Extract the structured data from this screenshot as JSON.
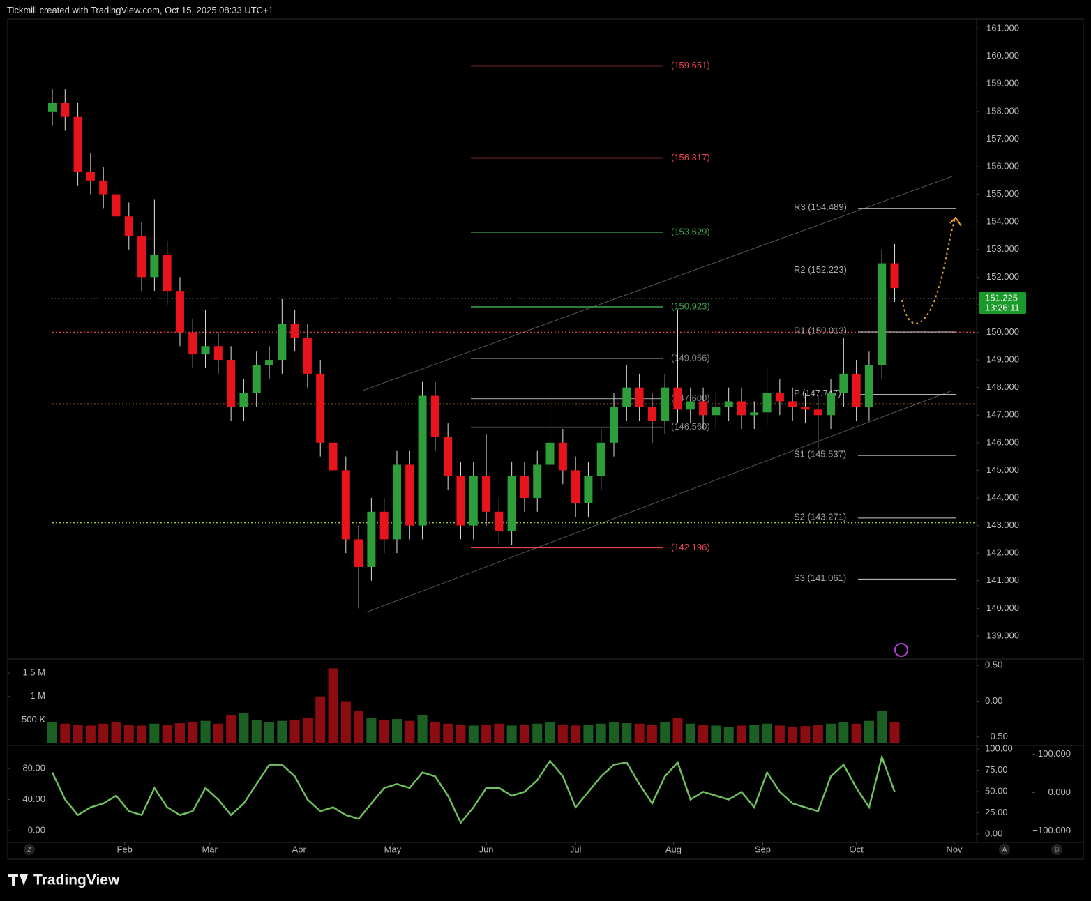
{
  "header": {
    "title": "Tickmill created with TradingView.com, Oct 15, 2025 08:33 UTC+1"
  },
  "footer": {
    "brand": "TradingView"
  },
  "controls": {
    "z": "Z",
    "a": "A",
    "b": "B"
  },
  "chart_data": {
    "type": "candlestick",
    "up_color": "#2e9e3a",
    "down_color": "#e8141c",
    "x": [
      0,
      3,
      6,
      9,
      12,
      15,
      18,
      21,
      24,
      27,
      30,
      33,
      36,
      39,
      42,
      45,
      48,
      51,
      54,
      57,
      60,
      63,
      66,
      69,
      72,
      75,
      78,
      81,
      84,
      87,
      90,
      93,
      96,
      99,
      102,
      105,
      108,
      111,
      114,
      117,
      120,
      123,
      126,
      129,
      132,
      135,
      138,
      141,
      144,
      147,
      150,
      153,
      156,
      159,
      162,
      165,
      168,
      171,
      174,
      177,
      180,
      183,
      186,
      189,
      192,
      195,
      198
    ],
    "open": [
      158.0,
      158.3,
      157.8,
      155.8,
      155.5,
      155.0,
      154.2,
      153.5,
      152.0,
      152.8,
      151.5,
      150.0,
      149.2,
      149.5,
      149.0,
      147.3,
      147.8,
      148.8,
      149.0,
      150.3,
      149.8,
      148.5,
      146.0,
      145.0,
      142.5,
      141.5,
      143.5,
      142.5,
      145.2,
      143.0,
      147.7,
      146.2,
      144.8,
      143.0,
      144.8,
      143.5,
      142.8,
      144.8,
      144.0,
      145.2,
      146.0,
      145.0,
      143.8,
      144.8,
      146.0,
      147.3,
      148.0,
      147.3,
      146.8,
      148.0,
      147.2,
      147.5,
      147.0,
      147.3,
      147.5,
      147.0,
      147.1,
      147.8,
      147.5,
      147.3,
      147.2,
      147.0,
      147.8,
      148.5,
      147.3,
      148.8,
      152.5
    ],
    "high": [
      158.8,
      158.8,
      158.3,
      156.5,
      156.0,
      155.5,
      154.7,
      154.0,
      154.8,
      153.3,
      152.0,
      150.5,
      150.8,
      150.0,
      149.5,
      148.3,
      149.3,
      149.5,
      151.2,
      150.8,
      150.3,
      149.0,
      146.5,
      145.5,
      143.0,
      144.0,
      144.0,
      145.7,
      145.7,
      148.2,
      148.2,
      146.7,
      145.3,
      145.3,
      146.3,
      144.0,
      145.3,
      145.3,
      145.7,
      147.8,
      146.5,
      145.5,
      145.3,
      146.5,
      147.8,
      148.8,
      148.5,
      147.8,
      148.5,
      150.8,
      148.0,
      148.0,
      147.8,
      148.0,
      148.0,
      147.5,
      148.7,
      148.3,
      148.0,
      147.8,
      147.7,
      148.3,
      149.8,
      149.0,
      149.3,
      153.0,
      153.2
    ],
    "low": [
      157.5,
      157.3,
      155.3,
      155.0,
      154.5,
      153.7,
      153.0,
      151.5,
      151.5,
      151.0,
      149.5,
      148.7,
      148.7,
      148.5,
      146.8,
      146.8,
      147.3,
      148.3,
      148.5,
      149.3,
      148.0,
      145.5,
      144.5,
      142.0,
      140.0,
      141.0,
      142.0,
      142.0,
      142.5,
      142.5,
      145.7,
      144.3,
      142.5,
      142.5,
      143.0,
      142.3,
      142.3,
      143.5,
      143.5,
      144.7,
      144.5,
      143.3,
      143.3,
      144.3,
      145.5,
      146.8,
      146.8,
      146.0,
      146.3,
      146.7,
      146.7,
      146.5,
      146.5,
      146.8,
      146.5,
      146.5,
      146.6,
      147.0,
      146.8,
      146.7,
      145.8,
      146.5,
      147.3,
      146.8,
      146.8,
      148.3,
      151.1
    ],
    "close": [
      158.3,
      157.8,
      155.8,
      155.5,
      155.0,
      154.2,
      153.5,
      152.0,
      152.8,
      151.5,
      150.0,
      149.2,
      149.5,
      149.0,
      147.3,
      147.8,
      148.8,
      149.0,
      150.3,
      149.8,
      148.5,
      146.0,
      145.0,
      142.5,
      141.5,
      143.5,
      142.5,
      145.2,
      143.0,
      147.7,
      146.2,
      144.8,
      143.0,
      144.8,
      143.5,
      142.8,
      144.8,
      144.0,
      145.2,
      146.0,
      145.0,
      143.8,
      144.8,
      146.0,
      147.3,
      148.0,
      147.3,
      146.8,
      148.0,
      147.2,
      147.5,
      147.0,
      147.3,
      147.5,
      147.0,
      147.1,
      147.8,
      147.5,
      147.3,
      147.2,
      147.0,
      147.8,
      148.5,
      147.3,
      148.8,
      152.5,
      151.6
    ],
    "xlim": [
      0,
      213
    ],
    "xticks": [
      {
        "value": 17,
        "label": "Feb"
      },
      {
        "value": 37,
        "label": "Mar"
      },
      {
        "value": 58,
        "label": "Apr"
      },
      {
        "value": 80,
        "label": "May"
      },
      {
        "value": 102,
        "label": "Jun"
      },
      {
        "value": 123,
        "label": "Jul"
      },
      {
        "value": 146,
        "label": "Aug"
      },
      {
        "value": 167,
        "label": "Sep"
      },
      {
        "value": 189,
        "label": "Oct"
      },
      {
        "value": 212,
        "label": "Nov"
      }
    ],
    "ylim": [
      138.19,
      161.33
    ],
    "yticks": [
      {
        "value": 139,
        "label": "139.000"
      },
      {
        "value": 140,
        "label": "140.000"
      },
      {
        "value": 141,
        "label": "141.000"
      },
      {
        "value": 142,
        "label": "142.000"
      },
      {
        "value": 143,
        "label": "143.000"
      },
      {
        "value": 144,
        "label": "144.000"
      },
      {
        "value": 145,
        "label": "145.000"
      },
      {
        "value": 146,
        "label": "146.000"
      },
      {
        "value": 147,
        "label": "147.000"
      },
      {
        "value": 148,
        "label": "148.000"
      },
      {
        "value": 149,
        "label": "149.000"
      },
      {
        "value": 150,
        "label": "150.000"
      },
      {
        "value": 151,
        "label": "151.000"
      },
      {
        "value": 152,
        "label": "152.000"
      },
      {
        "value": 153,
        "label": "153.000"
      },
      {
        "value": 154,
        "label": "154.000"
      },
      {
        "value": 155,
        "label": "155.000"
      },
      {
        "value": 156,
        "label": "156.000"
      },
      {
        "value": 157,
        "label": "157.000"
      },
      {
        "value": 158,
        "label": "158.000"
      },
      {
        "value": 159,
        "label": "159.000"
      },
      {
        "value": 160,
        "label": "160.000"
      },
      {
        "value": 161,
        "label": "161.000"
      }
    ],
    "last_price": {
      "value": 151.225,
      "label": "151.225",
      "countdown": "13:26:11"
    },
    "fib_levels": [
      {
        "value": 159.651,
        "label": "(159.651)",
        "color": "#e8434f"
      },
      {
        "value": 156.317,
        "label": "(156.317)",
        "color": "#e8434f"
      },
      {
        "value": 153.629,
        "label": "(153.629)",
        "color": "#3fa34d"
      },
      {
        "value": 150.923,
        "label": "(150.923)",
        "color": "#3fa34d"
      },
      {
        "value": 149.056,
        "label": "(149.056)",
        "color": "#888888"
      },
      {
        "value": 147.6,
        "label": "(147.600)",
        "color": "#888888"
      },
      {
        "value": 146.56,
        "label": "(146.560)",
        "color": "#888888"
      },
      {
        "value": 142.196,
        "label": "(142.196)",
        "color": "#e8434f"
      }
    ],
    "pivots": [
      {
        "value": 154.489,
        "label": "R3 (154.489)"
      },
      {
        "value": 152.223,
        "label": "R2 (152.223)"
      },
      {
        "value": 150.013,
        "label": "R1 (150.013)"
      },
      {
        "value": 147.747,
        "label": "P (147.747)"
      },
      {
        "value": 145.537,
        "label": "S1 (145.537)"
      },
      {
        "value": 143.271,
        "label": "S2 (143.271)"
      },
      {
        "value": 141.061,
        "label": "S3 (141.061)"
      }
    ],
    "dotted_levels": [
      {
        "value": 150.0,
        "color": "#e8434f"
      },
      {
        "value": 147.4,
        "color": "#f0a030"
      },
      {
        "value": 143.1,
        "color": "#9acd32"
      }
    ],
    "volume": {
      "values": [
        450000,
        420000,
        400000,
        380000,
        420000,
        450000,
        400000,
        380000,
        420000,
        400000,
        430000,
        450000,
        480000,
        420000,
        600000,
        650000,
        500000,
        450000,
        480000,
        500000,
        550000,
        1000000,
        1600000,
        900000,
        700000,
        550000,
        500000,
        520000,
        480000,
        600000,
        450000,
        420000,
        400000,
        380000,
        400000,
        420000,
        380000,
        400000,
        420000,
        450000,
        400000,
        380000,
        400000,
        420000,
        450000,
        430000,
        420000,
        400000,
        450000,
        550000,
        420000,
        400000,
        380000,
        350000,
        380000,
        400000,
        420000,
        380000,
        350000,
        370000,
        400000,
        420000,
        450000,
        420000,
        480000,
        700000,
        450000
      ],
      "ylim": [
        0,
        1785000
      ],
      "yticks": [
        {
          "value": 500000,
          "label": "500 K"
        },
        {
          "value": 1000000,
          "label": "1 M"
        },
        {
          "value": 1500000,
          "label": "1.5 M"
        }
      ],
      "y2lim": [
        -0.59,
        0.58
      ],
      "y2ticks": [
        {
          "value": 0.5,
          "label": "0.50"
        },
        {
          "value": 0,
          "label": "0.00"
        },
        {
          "value": -0.5,
          "label": "−0.50"
        }
      ]
    },
    "oscillator": {
      "color": "#6fbf5f",
      "values": [
        75,
        40,
        20,
        30,
        35,
        45,
        25,
        20,
        55,
        30,
        20,
        25,
        55,
        40,
        20,
        35,
        60,
        85,
        85,
        70,
        40,
        25,
        30,
        20,
        15,
        35,
        55,
        60,
        55,
        75,
        70,
        45,
        10,
        30,
        55,
        55,
        45,
        50,
        65,
        90,
        70,
        30,
        50,
        70,
        85,
        88,
        60,
        35,
        70,
        88,
        40,
        50,
        45,
        40,
        50,
        30,
        75,
        50,
        35,
        30,
        25,
        70,
        85,
        55,
        30,
        95,
        50
      ],
      "ylim": [
        -14.5,
        109
      ],
      "yticks": [
        {
          "value": 0,
          "label": "0.00"
        },
        {
          "value": 40,
          "label": "40.00"
        },
        {
          "value": 80,
          "label": "80.00"
        }
      ],
      "y2lim": [
        -9.1,
        103.3
      ],
      "y2ticks": [
        {
          "value": 0,
          "label": "0.00"
        },
        {
          "value": 25,
          "label": "25.00"
        },
        {
          "value": 50,
          "label": "50.00"
        },
        {
          "value": 75,
          "label": "75.00"
        },
        {
          "value": 100,
          "label": "100.00"
        }
      ],
      "y3lim": [
        -128,
        121
      ],
      "y3ticks": [
        {
          "value": -100,
          "label": "−100.000"
        },
        {
          "value": 0,
          "label": "0.000"
        },
        {
          "value": 100,
          "label": "100.000"
        }
      ]
    }
  }
}
